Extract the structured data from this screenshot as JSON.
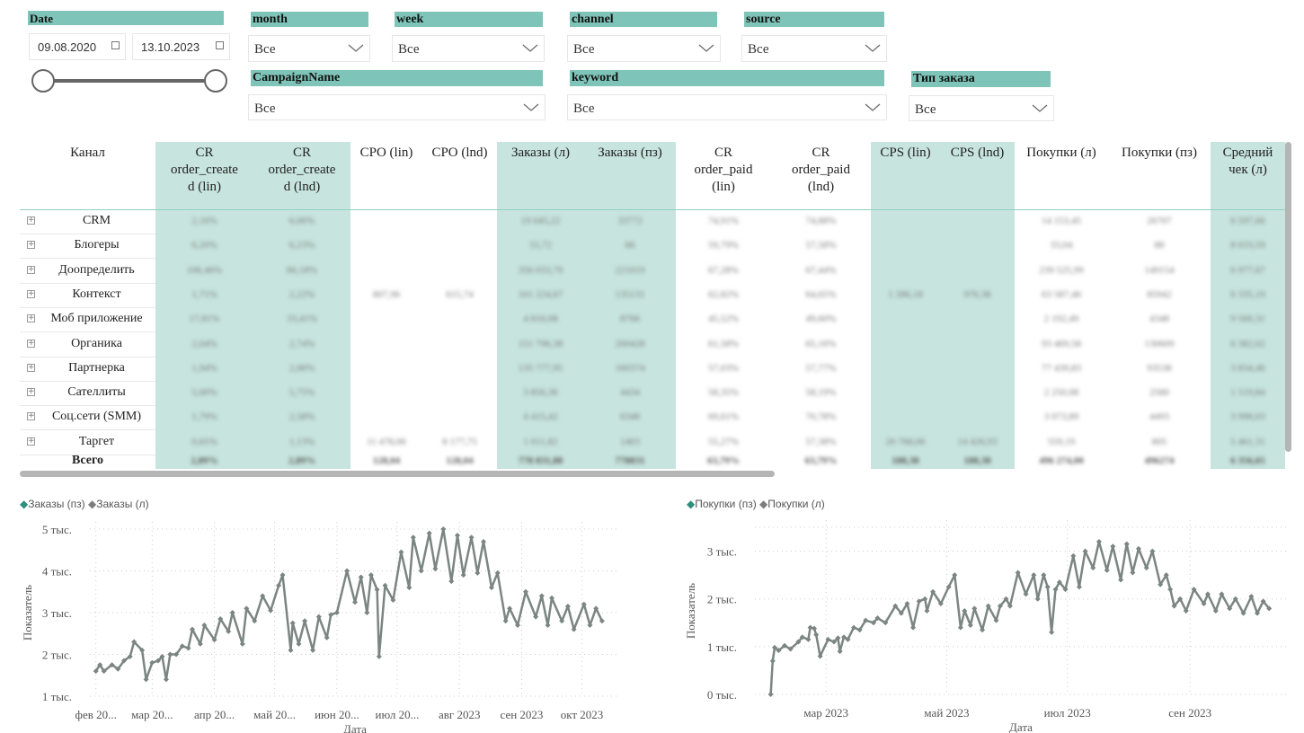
{
  "filters": {
    "date": {
      "label": "Date",
      "from": "09.08.2020",
      "to": "13.10.2023"
    },
    "month": {
      "label": "month",
      "value": "Все"
    },
    "week": {
      "label": "week",
      "value": "Все"
    },
    "channel": {
      "label": "channel",
      "value": "Все"
    },
    "source": {
      "label": "source",
      "value": "Все"
    },
    "campaign": {
      "label": "CampaignName",
      "value": "Все"
    },
    "keyword": {
      "label": "keyword",
      "value": "Все"
    },
    "order_type": {
      "label": "Тип заказа",
      "value": "Все"
    }
  },
  "colors": {
    "accent": "#7fc4b8",
    "column_highlight": "#c7e4de",
    "line": "#7b8582",
    "legend_teal": "#2f8f7f",
    "legend_gray": "#7a7f7e"
  },
  "table": {
    "columns": [
      "Канал",
      "CR order_created (lin)",
      "CR order_created (lnd)",
      "CPO (lin)",
      "CPO (lnd)",
      "Заказы (л)",
      "Заказы (пз)",
      "CR order_paid (lin)",
      "CR order_paid (lnd)",
      "CPS (lin)",
      "CPS (lnd)",
      "Покупки (л)",
      "Покупки (пз)",
      "Средний чек (л)"
    ],
    "header_lines": [
      [
        "Канал"
      ],
      [
        "CR",
        "order_create",
        "d (lin)"
      ],
      [
        "CR",
        "order_create",
        "d (lnd)"
      ],
      [
        "CPO (lin)"
      ],
      [
        "CPO (lnd)"
      ],
      [
        "Заказы (л)"
      ],
      [
        "Заказы (пз)"
      ],
      [
        "CR",
        "order_paid",
        "(lin)"
      ],
      [
        "CR",
        "order_paid",
        "(lnd)"
      ],
      [
        "CPS (lin)"
      ],
      [
        "CPS (lnd)"
      ],
      [
        "Покупки (л)"
      ],
      [
        "Покупки (пз)"
      ],
      [
        "Средний",
        "чек (л)"
      ]
    ],
    "highlighted_columns": [
      1,
      2,
      5,
      6,
      9,
      10,
      13
    ],
    "rows": [
      [
        "CRM",
        "2,16%",
        "6,06%",
        "",
        "",
        "19 045,22",
        "33772",
        "74,91%",
        "74,88%",
        "",
        "",
        "14 153,45",
        "26707",
        "6 597,66"
      ],
      [
        "Блогеры",
        "6,20%",
        "6,23%",
        "",
        "",
        "55,72",
        "66",
        "59,79%",
        "57,58%",
        "",
        "",
        "33,04",
        "88",
        "8 033,59"
      ],
      [
        "Доопределить",
        "106,46%",
        "66,18%",
        "",
        "",
        "356 033,79",
        "221019",
        "67,28%",
        "67,44%",
        "",
        "",
        "239 525,99",
        "149154",
        "6 977,67"
      ],
      [
        "Контекст",
        "1,71%",
        "2,22%",
        "807,96",
        "615,74",
        "101 224,67",
        "135131",
        "62,82%",
        "64,65%",
        "1 286,18",
        "976,38",
        "63 587,46",
        "85942",
        "6 335,19"
      ],
      [
        "Моб приложение",
        "17,81%",
        "33,41%",
        "",
        "",
        "4 816,08",
        "8766",
        "45,52%",
        "49,60%",
        "",
        "",
        "2 192,49",
        "4348",
        "9 560,31"
      ],
      [
        "Органика",
        "2,04%",
        "2,74%",
        "",
        "",
        "151 796,38",
        "200428",
        "61,58%",
        "65,16%",
        "",
        "",
        "93 469,58",
        "130609",
        "6 382,02"
      ],
      [
        "Партнерка",
        "1,94%",
        "2,06%",
        "",
        "",
        "135 777,95",
        "160374",
        "57,03%",
        "57,77%",
        "",
        "",
        "77 439,83",
        "93538",
        "3 834,46"
      ],
      [
        "Сателлиты",
        "5,00%",
        "5,75%",
        "",
        "",
        "3 856,36",
        "4434",
        "58,35%",
        "58,19%",
        "",
        "",
        "2 250,08",
        "2580",
        "1 519,84"
      ],
      [
        "Соц.сети (SMM)",
        "1,79%",
        "2,58%",
        "",
        "",
        "4 415,42",
        "6348",
        "69,61%",
        "70,78%",
        "",
        "",
        "3 073,89",
        "4493",
        "3 998,03"
      ],
      [
        "Таргет",
        "0,65%",
        "1,13%",
        "11 478,06",
        "8 177,75",
        "1 011,82",
        "1403",
        "55,27%",
        "57,38%",
        "20 768,06",
        "14 426,93",
        "559,19",
        "805",
        "5 461,31"
      ]
    ],
    "total": [
      "Всего",
      "2,89%",
      "2,89%",
      "128,04",
      "128,04",
      "778 831,88",
      "778831",
      "63,79%",
      "63,79%",
      "188,38",
      "188,38",
      "496 274,00",
      "496274",
      "6 356,65"
    ]
  },
  "chart_data": [
    {
      "type": "line",
      "legend": [
        "Заказы (пз)",
        "Заказы (л)"
      ],
      "legend_placement": "top-left",
      "xlabel": "Дата",
      "ylabel": "Показатель",
      "ylim": [
        1000,
        5000
      ],
      "yticks": [
        "1 тыс.",
        "2 тыс.",
        "3 тыс.",
        "4 тыс.",
        "5 тыс."
      ],
      "yticks_values": [
        1000,
        2000,
        3000,
        4000,
        5000
      ],
      "xticks": [
        "фев 20...",
        "мар 20...",
        "апр 20...",
        "май 20...",
        "июн 20...",
        "июл 20...",
        "авг 2023",
        "сен 2023",
        "окт 2023"
      ],
      "xticks_dates": [
        "2023-02-01",
        "2023-03-01",
        "2023-04-01",
        "2023-05-01",
        "2023-06-01",
        "2023-07-01",
        "2023-08-01",
        "2023-09-01",
        "2023-10-01"
      ],
      "xlim": [
        "2023-01-29",
        "2023-10-20"
      ],
      "grid": true,
      "series": [
        {
          "name": "Заказы (л)",
          "x": [
            "2023-02-01",
            "2023-02-03",
            "2023-02-05",
            "2023-02-09",
            "2023-02-12",
            "2023-02-15",
            "2023-02-18",
            "2023-02-20",
            "2023-02-24",
            "2023-02-26",
            "2023-03-01",
            "2023-03-04",
            "2023-03-06",
            "2023-03-08",
            "2023-03-10",
            "2023-03-13",
            "2023-03-16",
            "2023-03-19",
            "2023-03-21",
            "2023-03-25",
            "2023-03-27",
            "2023-04-01",
            "2023-04-04",
            "2023-04-08",
            "2023-04-10",
            "2023-04-15",
            "2023-04-17",
            "2023-04-21",
            "2023-04-25",
            "2023-04-29",
            "2023-05-03",
            "2023-05-05",
            "2023-05-09",
            "2023-05-10",
            "2023-05-13",
            "2023-05-16",
            "2023-05-20",
            "2023-05-23",
            "2023-05-27",
            "2023-05-29",
            "2023-06-01",
            "2023-06-06",
            "2023-06-10",
            "2023-06-13",
            "2023-06-16",
            "2023-06-18",
            "2023-06-21",
            "2023-06-22",
            "2023-06-25",
            "2023-06-29",
            "2023-07-03",
            "2023-07-07",
            "2023-07-09",
            "2023-07-13",
            "2023-07-17",
            "2023-07-20",
            "2023-07-24",
            "2023-07-28",
            "2023-07-31",
            "2023-08-03",
            "2023-08-07",
            "2023-08-10",
            "2023-08-13",
            "2023-08-17",
            "2023-08-20",
            "2023-08-24",
            "2023-08-26",
            "2023-08-30",
            "2023-09-03",
            "2023-09-08",
            "2023-09-11",
            "2023-09-14",
            "2023-09-16",
            "2023-09-21",
            "2023-09-24",
            "2023-09-27",
            "2023-10-02",
            "2023-10-05",
            "2023-10-08",
            "2023-10-11"
          ],
          "y": [
            1600,
            1750,
            1600,
            1750,
            1650,
            1850,
            1950,
            2300,
            2100,
            1400,
            1800,
            1850,
            1950,
            1400,
            2000,
            2000,
            2200,
            2150,
            2600,
            2250,
            2700,
            2350,
            2850,
            2550,
            3000,
            2250,
            3100,
            2800,
            3400,
            3050,
            3650,
            3900,
            2100,
            2750,
            2250,
            2800,
            2100,
            2900,
            2400,
            2950,
            3000,
            4000,
            3250,
            3850,
            3000,
            3900,
            3550,
            1950,
            3650,
            3300,
            4450,
            3600,
            4800,
            4000,
            4900,
            4050,
            5000,
            3750,
            4850,
            3900,
            4800,
            3950,
            4700,
            3600,
            3950,
            2800,
            3100,
            2700,
            3500,
            2900,
            3400,
            2700,
            3350,
            2800,
            3150,
            2600,
            3200,
            2700,
            3100,
            2800
          ]
        }
      ]
    },
    {
      "type": "line",
      "legend": [
        "Покупки (пз)",
        "Покупки (л)"
      ],
      "legend_placement": "top-left",
      "xlabel": "Дата",
      "ylabel": "Показатель",
      "ylim": [
        0,
        3500
      ],
      "yticks": [
        "0 тыс.",
        "1 тыс.",
        "2 тыс.",
        "3 тыс."
      ],
      "yticks_values": [
        0,
        1000,
        2000,
        3000
      ],
      "xticks": [
        "мар 2023",
        "май 2023",
        "июл 2023",
        "сен 2023"
      ],
      "xticks_dates": [
        "2023-03-01",
        "2023-05-01",
        "2023-07-01",
        "2023-09-01"
      ],
      "xlim": [
        "2023-01-24",
        "2023-10-20"
      ],
      "grid": true,
      "series": [
        {
          "name": "Покупки (л)",
          "x": [
            "2023-02-01",
            "2023-02-02",
            "2023-02-03",
            "2023-02-05",
            "2023-02-08",
            "2023-02-11",
            "2023-02-15",
            "2023-02-17",
            "2023-02-20",
            "2023-02-21",
            "2023-02-23",
            "2023-02-24",
            "2023-02-26",
            "2023-03-02",
            "2023-03-05",
            "2023-03-07",
            "2023-03-08",
            "2023-03-10",
            "2023-03-12",
            "2023-03-15",
            "2023-03-18",
            "2023-03-21",
            "2023-03-25",
            "2023-03-27",
            "2023-03-31",
            "2023-04-05",
            "2023-04-08",
            "2023-04-11",
            "2023-04-14",
            "2023-04-17",
            "2023-04-20",
            "2023-04-21",
            "2023-04-24",
            "2023-04-28",
            "2023-05-02",
            "2023-05-05",
            "2023-05-08",
            "2023-05-10",
            "2023-05-13",
            "2023-05-15",
            "2023-05-19",
            "2023-05-22",
            "2023-05-26",
            "2023-05-28",
            "2023-05-31",
            "2023-06-02",
            "2023-06-06",
            "2023-06-10",
            "2023-06-14",
            "2023-06-16",
            "2023-06-19",
            "2023-06-21",
            "2023-06-23",
            "2023-06-25",
            "2023-06-27",
            "2023-06-30",
            "2023-07-04",
            "2023-07-07",
            "2023-07-10",
            "2023-07-14",
            "2023-07-17",
            "2023-07-21",
            "2023-07-24",
            "2023-07-28",
            "2023-07-31",
            "2023-08-03",
            "2023-08-06",
            "2023-08-10",
            "2023-08-13",
            "2023-08-17",
            "2023-08-20",
            "2023-08-22",
            "2023-08-24",
            "2023-08-27",
            "2023-08-30",
            "2023-09-03",
            "2023-09-08",
            "2023-09-10",
            "2023-09-14",
            "2023-09-17",
            "2023-09-21",
            "2023-09-24",
            "2023-09-28",
            "2023-10-02",
            "2023-10-05",
            "2023-10-08",
            "2023-10-11"
          ],
          "y": [
            0,
            700,
            980,
            920,
            1020,
            950,
            1100,
            1200,
            1150,
            1400,
            1380,
            1250,
            800,
            1150,
            1100,
            1180,
            900,
            1200,
            1150,
            1400,
            1350,
            1550,
            1500,
            1600,
            1500,
            1850,
            1700,
            1900,
            1400,
            1950,
            2000,
            1750,
            2150,
            1900,
            2250,
            2500,
            1400,
            1750,
            1450,
            1800,
            1350,
            1850,
            1550,
            1850,
            2000,
            1850,
            2550,
            2100,
            2500,
            2000,
            2500,
            2250,
            1300,
            2200,
            2350,
            2200,
            2900,
            2250,
            3000,
            2650,
            3200,
            2600,
            3100,
            2400,
            3150,
            2550,
            3050,
            2650,
            3000,
            2300,
            2500,
            2200,
            1850,
            2000,
            1750,
            2200,
            1900,
            2100,
            1750,
            2100,
            1800,
            2000,
            1700,
            2050,
            1700,
            1950,
            1800
          ]
        }
      ]
    }
  ]
}
